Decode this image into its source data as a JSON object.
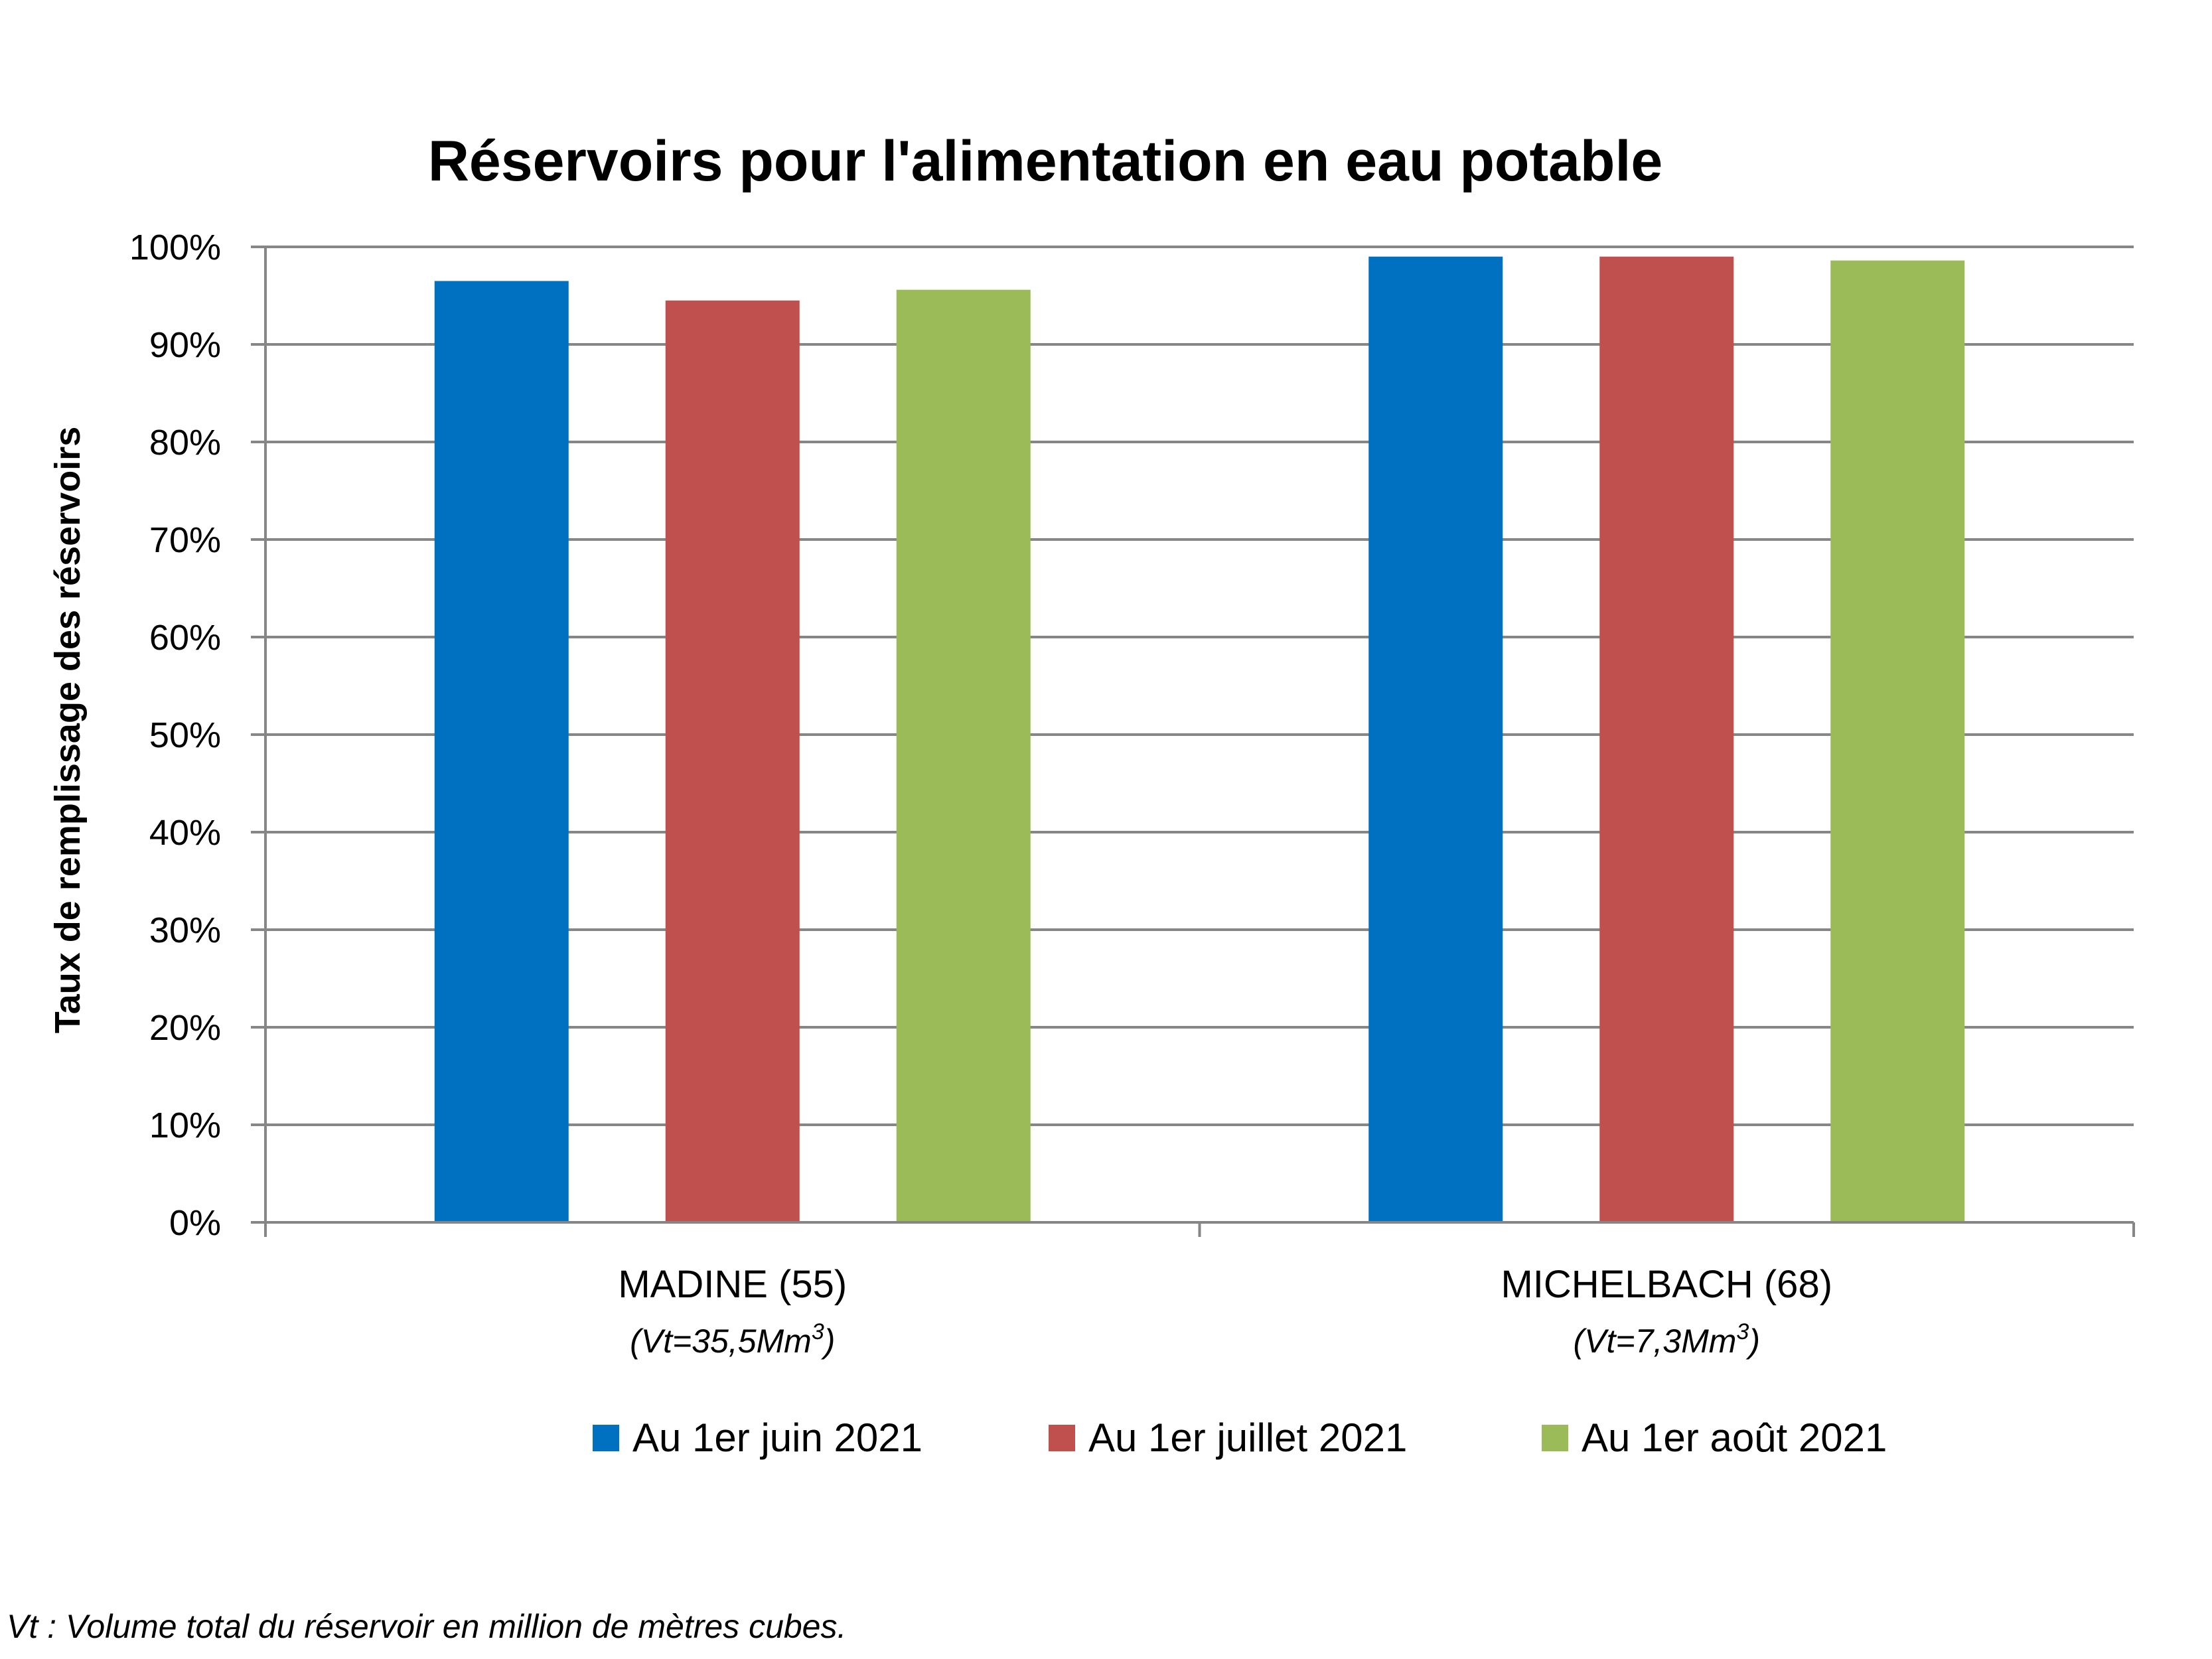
{
  "chart_data": {
    "type": "bar",
    "title": "Réservoirs pour l'alimentation en eau potable",
    "ylabel": "Taux de remplissage des réservoirs",
    "xlabel": "",
    "ylim": [
      0,
      100
    ],
    "y_ticks": [
      "0%",
      "10%",
      "20%",
      "30%",
      "40%",
      "50%",
      "60%",
      "70%",
      "80%",
      "90%",
      "100%"
    ],
    "categories": [
      "MADINE (55)",
      "MICHELBACH (68)"
    ],
    "category_sublabels": [
      {
        "prefix": "(Vt=35,5Mm",
        "sup": "3",
        "suffix": ")"
      },
      {
        "prefix": "(Vt=7,3Mm",
        "sup": "3",
        "suffix": ")"
      }
    ],
    "series": [
      {
        "name": "Au 1er juin 2021",
        "color": "#0070C0",
        "values": [
          96.5,
          99
        ]
      },
      {
        "name": "Au 1er juillet 2021",
        "color": "#C0504D",
        "values": [
          94.5,
          99
        ]
      },
      {
        "name": "Au 1er août 2021",
        "color": "#9BBB59",
        "values": [
          95.6,
          98.6
        ]
      }
    ],
    "grid": true,
    "grid_color": "#868686",
    "legend_position": "bottom"
  },
  "footnote": "Vt : Volume total du réservoir en million de mètres cubes."
}
